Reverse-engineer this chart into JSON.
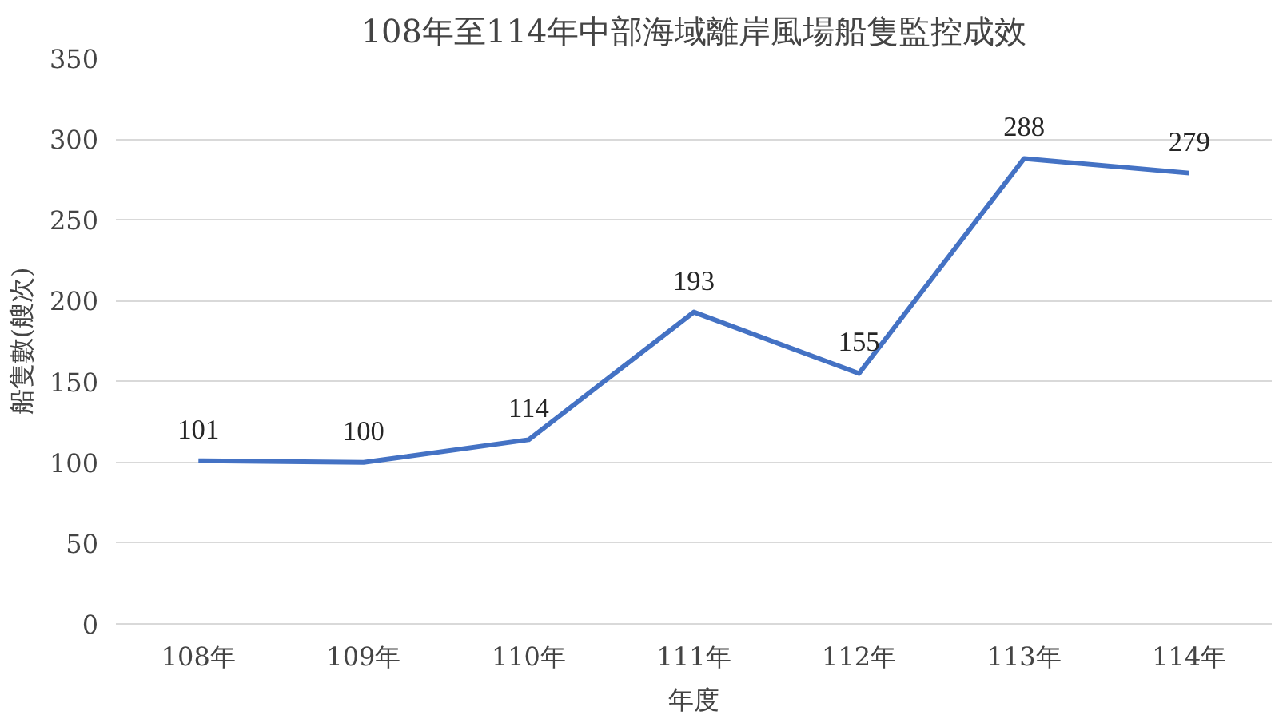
{
  "chart_data": {
    "type": "line",
    "title": "108年至114年中部海域離岸風場船隻監控成效",
    "xlabel": "年度",
    "ylabel": "船隻數(艘次)",
    "categories": [
      "108年",
      "109年",
      "110年",
      "111年",
      "112年",
      "113年",
      "114年"
    ],
    "series": [
      {
        "color": "#4472c4",
        "values": [
          101,
          100,
          114,
          193,
          155,
          288,
          279
        ]
      }
    ],
    "ylim": [
      0,
      350
    ],
    "yticks": [
      0,
      50,
      100,
      150,
      200,
      250,
      300,
      350
    ],
    "grid": "y",
    "marker": "none",
    "line_style": "solid",
    "data_labels": true
  }
}
